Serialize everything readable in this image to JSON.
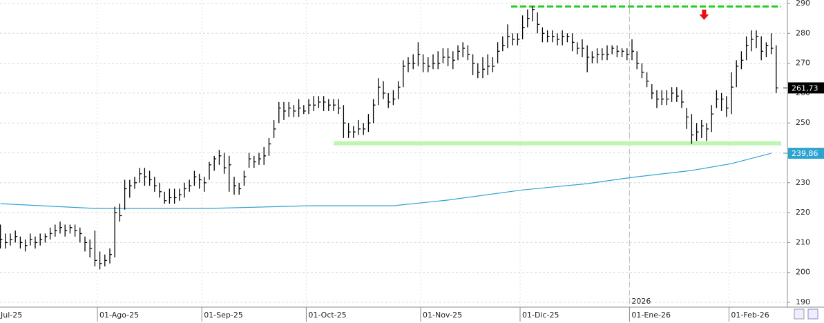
{
  "chart_data": {
    "type": "ohlc",
    "ylim": [
      190,
      290
    ],
    "yticks": [
      190,
      200,
      210,
      220,
      230,
      240,
      250,
      260,
      270,
      280,
      290
    ],
    "xlim": [
      -2.5,
      158
    ],
    "xticks": [
      {
        "value": -2.5,
        "label": "Jul-25"
      },
      {
        "value": 19.5,
        "label": "01-Ago-25"
      },
      {
        "value": 40.5,
        "label": "01-Sep-25"
      },
      {
        "value": 61.5,
        "label": "01-Oct-25"
      },
      {
        "value": 84.5,
        "label": "01-Nov-25"
      },
      {
        "value": 104.5,
        "label": "01-Dic-25"
      },
      {
        "value": 126.5,
        "label": "01-Ene-26"
      },
      {
        "value": 146.5,
        "label": "01-Feb-26"
      }
    ],
    "year_marker": {
      "value": 126.5,
      "label": "2026"
    },
    "grid": true,
    "bar_color": "#000000",
    "bars": [
      [
        216,
        208,
        211
      ],
      [
        213,
        208,
        210
      ],
      [
        213,
        209,
        211
      ],
      [
        214,
        210,
        212
      ],
      [
        212,
        208,
        210
      ],
      [
        211,
        207,
        209
      ],
      [
        213,
        209,
        211
      ],
      [
        212,
        208,
        210
      ],
      [
        213,
        209,
        211
      ],
      [
        213,
        210,
        212
      ],
      [
        215,
        211,
        213
      ],
      [
        216,
        212,
        214
      ],
      [
        217,
        213,
        215
      ],
      [
        216,
        212,
        214
      ],
      [
        216,
        213,
        215
      ],
      [
        216,
        212,
        214
      ],
      [
        215,
        210,
        213
      ],
      [
        212,
        207,
        210
      ],
      [
        211,
        205,
        208
      ],
      [
        214,
        202,
        204
      ],
      [
        207,
        201,
        203
      ],
      [
        206,
        202,
        204
      ],
      [
        208,
        203,
        206
      ],
      [
        222,
        205,
        220
      ],
      [
        223,
        217,
        219
      ],
      [
        231,
        221,
        228
      ],
      [
        231,
        225,
        229
      ],
      [
        232,
        228,
        230
      ],
      [
        235,
        230,
        233
      ],
      [
        235,
        229,
        232
      ],
      [
        234,
        229,
        231
      ],
      [
        232,
        227,
        229
      ],
      [
        230,
        225,
        227
      ],
      [
        227,
        223,
        224
      ],
      [
        228,
        223,
        225
      ],
      [
        228,
        223,
        225
      ],
      [
        228,
        224,
        226
      ],
      [
        230,
        225,
        228
      ],
      [
        231,
        227,
        229
      ],
      [
        234,
        229,
        232
      ],
      [
        233,
        228,
        231
      ],
      [
        232,
        227,
        230
      ],
      [
        237,
        231,
        236
      ],
      [
        239,
        234,
        238
      ],
      [
        241,
        236,
        239
      ],
      [
        240,
        233,
        235
      ],
      [
        239,
        227,
        236
      ],
      [
        232,
        226,
        229
      ],
      [
        230,
        226,
        228
      ],
      [
        234,
        229,
        232
      ],
      [
        240,
        235,
        238
      ],
      [
        239,
        235,
        237
      ],
      [
        240,
        236,
        238
      ],
      [
        242,
        236,
        239
      ],
      [
        245,
        239,
        243
      ],
      [
        251,
        245,
        248
      ],
      [
        257,
        250,
        255
      ],
      [
        257,
        251,
        254
      ],
      [
        257,
        252,
        255
      ],
      [
        256,
        252,
        254
      ],
      [
        258,
        252,
        255
      ],
      [
        256,
        253,
        254
      ],
      [
        258,
        253,
        256
      ],
      [
        259,
        254,
        256
      ],
      [
        259,
        255,
        257
      ],
      [
        259,
        254,
        257
      ],
      [
        258,
        254,
        256
      ],
      [
        258,
        254,
        256
      ],
      [
        258,
        253,
        255
      ],
      [
        256,
        245,
        250
      ],
      [
        250,
        245,
        247
      ],
      [
        249,
        245,
        247
      ],
      [
        251,
        246,
        248
      ],
      [
        250,
        246,
        248
      ],
      [
        253,
        247,
        250
      ],
      [
        258,
        250,
        256
      ],
      [
        265,
        256,
        262
      ],
      [
        264,
        258,
        260
      ],
      [
        260,
        255,
        257
      ],
      [
        261,
        256,
        258
      ],
      [
        264,
        258,
        262
      ],
      [
        271,
        262,
        269
      ],
      [
        272,
        267,
        270
      ],
      [
        273,
        268,
        270
      ],
      [
        277,
        269,
        273
      ],
      [
        273,
        267,
        270
      ],
      [
        272,
        267,
        269
      ],
      [
        273,
        268,
        270
      ],
      [
        274,
        268,
        270
      ],
      [
        275,
        270,
        272
      ],
      [
        275,
        269,
        272
      ],
      [
        274,
        268,
        271
      ],
      [
        276,
        271,
        274
      ],
      [
        277,
        272,
        275
      ],
      [
        276,
        271,
        273
      ],
      [
        273,
        266,
        270
      ],
      [
        270,
        265,
        267
      ],
      [
        272,
        265,
        268
      ],
      [
        273,
        266,
        269
      ],
      [
        272,
        267,
        269
      ],
      [
        277,
        270,
        274
      ],
      [
        279,
        274,
        276
      ],
      [
        283,
        275,
        279
      ],
      [
        280,
        276,
        278
      ],
      [
        280,
        276,
        278
      ],
      [
        286,
        278,
        282
      ],
      [
        288,
        282,
        285
      ],
      [
        289,
        284,
        288
      ],
      [
        287,
        280,
        283
      ],
      [
        282,
        277,
        280
      ],
      [
        281,
        277,
        279
      ],
      [
        281,
        277,
        279
      ],
      [
        280,
        276,
        278
      ],
      [
        281,
        276,
        279
      ],
      [
        280,
        277,
        279
      ],
      [
        280,
        274,
        277
      ],
      [
        277,
        273,
        275
      ],
      [
        278,
        272,
        275
      ],
      [
        276,
        267,
        272
      ],
      [
        274,
        270,
        272
      ],
      [
        275,
        270,
        273
      ],
      [
        275,
        271,
        273
      ],
      [
        276,
        271,
        273
      ],
      [
        276,
        273,
        275
      ],
      [
        276,
        272,
        274
      ],
      [
        275,
        272,
        274
      ],
      [
        275,
        271,
        273
      ],
      [
        278,
        271,
        274
      ],
      [
        274,
        268,
        270
      ],
      [
        270,
        265,
        267
      ],
      [
        267,
        262,
        264
      ],
      [
        263,
        258,
        260
      ],
      [
        261,
        255,
        258
      ],
      [
        261,
        256,
        258
      ],
      [
        261,
        256,
        258
      ],
      [
        262,
        257,
        260
      ],
      [
        262,
        257,
        259
      ],
      [
        261,
        255,
        257
      ],
      [
        255,
        248,
        252
      ],
      [
        253,
        243,
        246
      ],
      [
        250,
        244,
        247
      ],
      [
        251,
        245,
        249
      ],
      [
        250,
        244,
        248
      ],
      [
        256,
        247,
        253
      ],
      [
        261,
        255,
        258
      ],
      [
        260,
        254,
        258
      ],
      [
        259,
        252,
        255
      ],
      [
        267,
        253,
        262
      ],
      [
        271,
        262,
        269
      ],
      [
        274,
        268,
        271
      ],
      [
        279,
        271,
        276
      ],
      [
        281,
        274,
        278
      ],
      [
        281,
        275,
        279
      ],
      [
        279,
        271,
        274
      ],
      [
        277,
        272,
        276
      ],
      [
        280,
        273,
        275
      ],
      [
        276,
        260,
        261.73
      ]
    ],
    "last_label": {
      "value": 261.73,
      "label": "261,73"
    },
    "ma": {
      "color": "#2fa3cf",
      "x": [
        0,
        19,
        42,
        62,
        79,
        90,
        105,
        118,
        127,
        139,
        147,
        155
      ],
      "values": [
        223.0,
        221.4,
        221.4,
        222.3,
        222.3,
        224.2,
        227.6,
        229.7,
        231.8,
        234.1,
        236.4,
        239.86
      ]
    },
    "ma_label": {
      "value": 239.86,
      "label": "239,86"
    },
    "levels": [
      {
        "value": 289,
        "from": 102.7,
        "to": 157,
        "color": "#22cc22",
        "style": "dashed"
      },
      {
        "value": 243.2,
        "from": 67,
        "to": 157,
        "color": "#bff5b4",
        "style": "band"
      }
    ],
    "arrow": {
      "x": 141.5,
      "value": 284.5,
      "color": "#e81010"
    }
  }
}
